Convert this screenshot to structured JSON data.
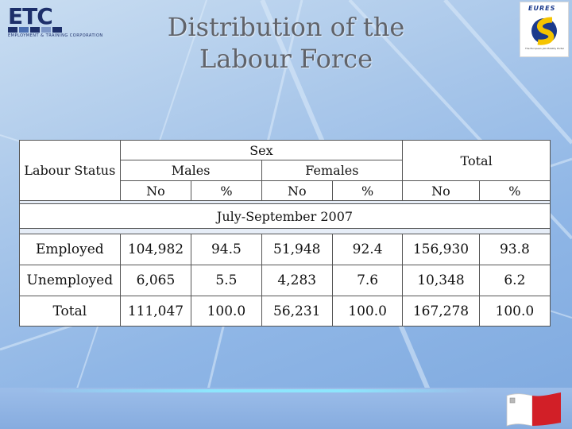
{
  "slide": {
    "title_line1": "Distribution of the",
    "title_line2": "Labour Force"
  },
  "logos": {
    "etc_word": "ETC",
    "etc_tagline": "EMPLOYMENT & TRAINING CORPORATION",
    "eures_word": "EURES",
    "eures_tagline": "The European Job Mobility Portal"
  },
  "table": {
    "header": {
      "labour_status": "Labour Status",
      "sex": "Sex",
      "males": "Males",
      "females": "Females",
      "total": "Total",
      "no": "No",
      "pct": "%"
    },
    "period": "July-September 2007",
    "rows": [
      {
        "label": "Employed",
        "males_no": "104,982",
        "males_pct": "94.5",
        "females_no": "51,948",
        "females_pct": "92.4",
        "total_no": "156,930",
        "total_pct": "93.8"
      },
      {
        "label": "Unemployed",
        "males_no": "6,065",
        "males_pct": "5.5",
        "females_no": "4,283",
        "females_pct": "7.6",
        "total_no": "10,348",
        "total_pct": "6.2"
      },
      {
        "label": "Total",
        "males_no": "111,047",
        "males_pct": "100.0",
        "females_no": "56,231",
        "females_pct": "100.0",
        "total_no": "167,278",
        "total_pct": "100.0"
      }
    ]
  },
  "colors": {
    "background": "#a9c7ea",
    "title": "#60636a",
    "etc_blue": "#1d2f6a",
    "eures_blue": "#1b3a8c",
    "eures_yellow": "#f5c400",
    "flag_red": "#d21f27"
  }
}
